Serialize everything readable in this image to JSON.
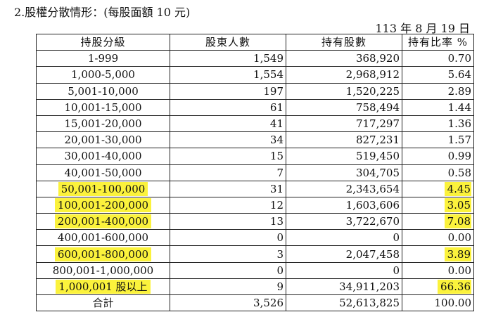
{
  "heading": "2.股權分散情形：(每股面額 10 元)",
  "date": "113 年 8 月 19 日",
  "headers": [
    "持股分級",
    "股東人數",
    "持有股數",
    "持有比率 %"
  ],
  "rows": [
    {
      "range": "1-999",
      "holders": "1,549",
      "shares": "368,920",
      "pct": "0.70",
      "highlight_range": false,
      "highlight_pct": false
    },
    {
      "range": "1,000-5,000",
      "holders": "1,554",
      "shares": "2,968,912",
      "pct": "5.64",
      "highlight_range": false,
      "highlight_pct": false
    },
    {
      "range": "5,001-10,000",
      "holders": "197",
      "shares": "1,520,225",
      "pct": "2.89",
      "highlight_range": false,
      "highlight_pct": false
    },
    {
      "range": "10,001-15,000",
      "holders": "61",
      "shares": "758,494",
      "pct": "1.44",
      "highlight_range": false,
      "highlight_pct": false
    },
    {
      "range": "15,001-20,000",
      "holders": "41",
      "shares": "717,297",
      "pct": "1.36",
      "highlight_range": false,
      "highlight_pct": false
    },
    {
      "range": "20,001-30,000",
      "holders": "34",
      "shares": "827,231",
      "pct": "1.57",
      "highlight_range": false,
      "highlight_pct": false
    },
    {
      "range": "30,001-40,000",
      "holders": "15",
      "shares": "519,450",
      "pct": "0.99",
      "highlight_range": false,
      "highlight_pct": false
    },
    {
      "range": "40,001-50,000",
      "holders": "7",
      "shares": "304,705",
      "pct": "0.58",
      "highlight_range": false,
      "highlight_pct": false
    },
    {
      "range": "50,001-100,000",
      "holders": "31",
      "shares": "2,343,654",
      "pct": "4.45",
      "highlight_range": true,
      "highlight_pct": true
    },
    {
      "range": "100,001-200,000",
      "holders": "12",
      "shares": "1,603,606",
      "pct": "3.05",
      "highlight_range": true,
      "highlight_pct": true
    },
    {
      "range": "200,001-400,000",
      "holders": "13",
      "shares": "3,722,670",
      "pct": "7.08",
      "highlight_range": true,
      "highlight_pct": true
    },
    {
      "range": "400,001-600,000",
      "holders": "0",
      "shares": "0",
      "pct": "0.00",
      "highlight_range": false,
      "highlight_pct": false
    },
    {
      "range": "600,001-800,000",
      "holders": "3",
      "shares": "2,047,458",
      "pct": "3.89",
      "highlight_range": true,
      "highlight_pct": true
    },
    {
      "range": "800,001-1,000,000",
      "holders": "0",
      "shares": "0",
      "pct": "0.00",
      "highlight_range": false,
      "highlight_pct": false
    },
    {
      "range": "1,000,001 股以上",
      "holders": "9",
      "shares": "34,911,203",
      "pct": "66.36",
      "highlight_range": true,
      "highlight_pct": true
    }
  ],
  "total": {
    "label": "合計",
    "holders": "3,526",
    "shares": "52,613,825",
    "pct": "100.00"
  },
  "colors": {
    "highlight": "#fbf23c",
    "border": "#222222",
    "text": "#111111"
  }
}
